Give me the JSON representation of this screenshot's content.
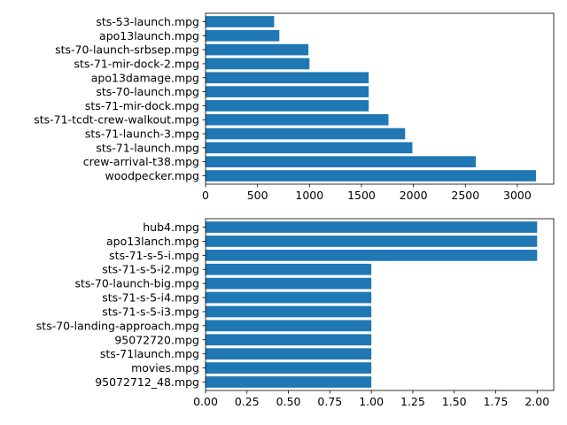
{
  "chart_data": [
    {
      "type": "bar",
      "orientation": "horizontal",
      "title": "",
      "xlabel": "",
      "ylabel": "",
      "categories": [
        "woodpecker.mpg",
        "crew-arrival-t38.mpg",
        "sts-71-launch.mpg",
        "sts-71-launch-3.mpg",
        "sts-71-tcdt-crew-walkout.mpg",
        "sts-71-mir-dock.mpg",
        "sts-70-launch.mpg",
        "apo13damage.mpg",
        "sts-71-mir-dock-2.mpg",
        "sts-70-launch-srbsep.mpg",
        "apo13launch.mpg",
        "sts-53-launch.mpg"
      ],
      "values": [
        3180,
        2600,
        1990,
        1920,
        1760,
        1570,
        1570,
        1570,
        1000,
        990,
        710,
        660
      ],
      "xlim": [
        0,
        3350
      ],
      "xticks": [
        0,
        500,
        1000,
        1500,
        2000,
        2500,
        3000
      ],
      "xtick_labels": [
        "0",
        "500",
        "1000",
        "1500",
        "2000",
        "2500",
        "3000"
      ],
      "grid": false,
      "bar_color": "#1f77b4"
    },
    {
      "type": "bar",
      "orientation": "horizontal",
      "title": "",
      "xlabel": "",
      "ylabel": "",
      "categories": [
        "95072712_48.mpg",
        "movies.mpg",
        "sts-71launch.mpg",
        "95072720.mpg",
        "sts-70-landing-approach.mpg",
        "sts-71-s-5-i3.mpg",
        "sts-71-s-5-i4.mpg",
        "sts-70-launch-big.mpg",
        "sts-71-s-5-i2.mpg",
        "sts-71-s-5-i.mpg",
        "apo13lanch.mpg",
        "hub4.mpg"
      ],
      "values": [
        1,
        1,
        1,
        1,
        1,
        1,
        1,
        1,
        1,
        2,
        2,
        2
      ],
      "xlim": [
        0,
        2.1
      ],
      "xticks": [
        0,
        0.25,
        0.5,
        0.75,
        1.0,
        1.25,
        1.5,
        1.75,
        2.0
      ],
      "xtick_labels": [
        "0.00",
        "0.25",
        "0.50",
        "0.75",
        "1.00",
        "1.25",
        "1.50",
        "1.75",
        "2.00"
      ],
      "grid": false,
      "bar_color": "#1f77b4"
    }
  ]
}
